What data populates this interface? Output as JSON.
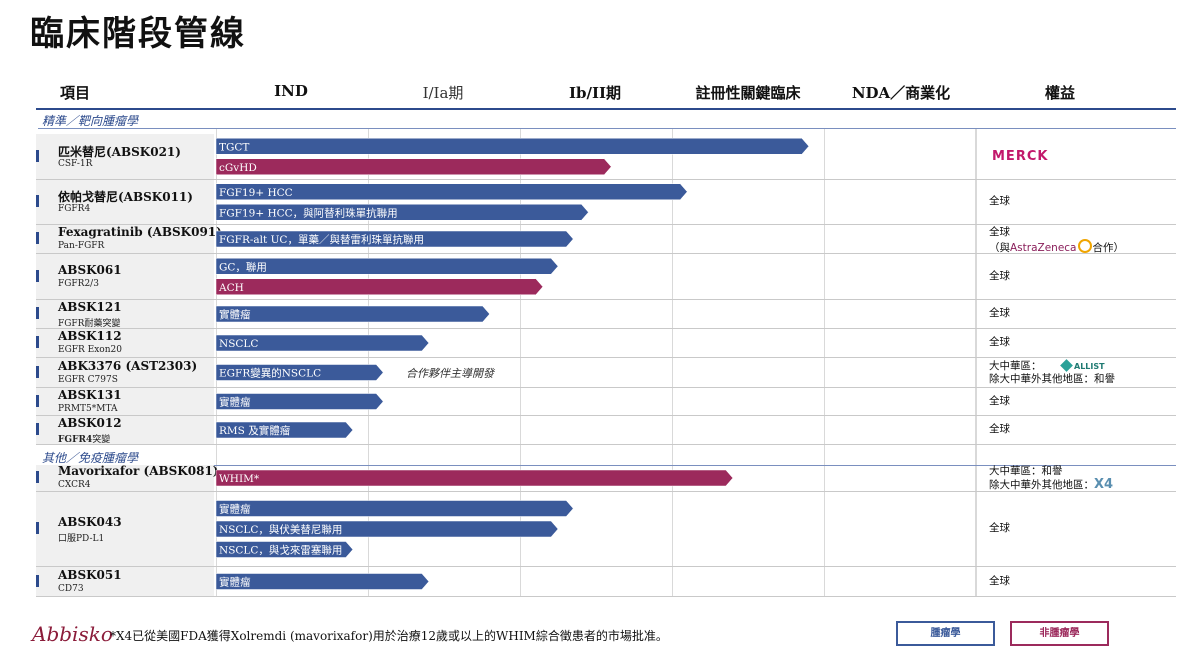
{
  "page_title": "臨床階段管線",
  "chart_data": {
    "type": "bar",
    "columns": [
      "項目",
      "IND",
      "I/Ia期",
      "Ib/II期",
      "註冊性關鍵臨床",
      "NDA／商業化",
      "權益"
    ],
    "stages": [
      "IND",
      "I/Ia期",
      "Ib/II期",
      "註冊性關鍵臨床",
      "NDA／商業化"
    ],
    "colors": {
      "oncology": "#3b5a9a",
      "non_oncology": "#9c2a5c",
      "accent": "#2c4a8c"
    },
    "sections": [
      {
        "label": "精準／靶向腫瘤學",
        "rows": [
          {
            "drug": "匹米替尼(ABSK021)",
            "target": "CSF-1R",
            "bars": [
              {
                "label": "TGCT",
                "progress": 3.9,
                "kind": "oncology"
              },
              {
                "label": "cGvHD",
                "progress": 2.6,
                "kind": "non_oncology"
              }
            ],
            "rights": [],
            "rights_logo": "merck"
          },
          {
            "drug": "依帕戈替尼(ABSK011)",
            "target": "FGFR4",
            "bars": [
              {
                "label": "FGF19+ HCC",
                "progress": 3.1,
                "kind": "oncology"
              },
              {
                "label": "FGF19+ HCC，與阿替利珠單抗聯用",
                "progress": 2.45,
                "kind": "oncology"
              }
            ],
            "rights": [
              "全球"
            ]
          },
          {
            "drug": "Fexagratinib (ABSK091)",
            "target": "Pan-FGFR",
            "bars": [
              {
                "label": "FGFR-alt UC，單藥／與替雷利珠單抗聯用",
                "progress": 2.35,
                "kind": "oncology"
              }
            ],
            "rights": [
              "全球",
              "（與",
              "合作）"
            ],
            "rights_partner": "AstraZeneca"
          },
          {
            "drug": "ABSK061",
            "target": "FGFR2/3",
            "bars": [
              {
                "label": "GC，聯用",
                "progress": 2.25,
                "kind": "oncology"
              },
              {
                "label": "ACH",
                "progress": 2.15,
                "kind": "non_oncology"
              }
            ],
            "rights": [
              "全球"
            ]
          },
          {
            "drug": "ABSK121",
            "target": "FGFR耐藥突變",
            "bars": [
              {
                "label": "實體瘤",
                "progress": 1.8,
                "kind": "oncology"
              }
            ],
            "rights": [
              "全球"
            ]
          },
          {
            "drug": "ABSK112",
            "target": "EGFR Exon20",
            "bars": [
              {
                "label": "NSCLC",
                "progress": 1.4,
                "kind": "oncology"
              }
            ],
            "rights": [
              "全球"
            ]
          },
          {
            "drug": "ABK3376 (AST2303)",
            "target": "EGFR C797S",
            "bars": [
              {
                "label": "EGFR變異的NSCLC",
                "progress": 1.1,
                "kind": "oncology"
              }
            ],
            "note": "合作夥伴主導開發",
            "rights": [
              "大中華區：",
              "除大中華外其他地區：和譽"
            ],
            "rights_partner": "ALLIST"
          },
          {
            "drug": "ABSK131",
            "target": "PRMT5*MTA",
            "bars": [
              {
                "label": "實體瘤",
                "progress": 1.1,
                "kind": "oncology"
              }
            ],
            "rights": [
              "全球"
            ]
          },
          {
            "drug": "ABSK012",
            "target_bold": "FGFR4",
            "target": "突變",
            "bars": [
              {
                "label": "RMS 及實體瘤",
                "progress": 0.9,
                "kind": "oncology"
              }
            ],
            "rights": [
              "全球"
            ]
          }
        ]
      },
      {
        "label": "其他／免疫腫瘤學",
        "rows": [
          {
            "drug": "Mavorixafor (ABSK081)",
            "target": "CXCR4",
            "bars": [
              {
                "label": "WHIM*",
                "progress": 3.4,
                "kind": "non_oncology"
              }
            ],
            "rights": [
              "大中華區：和譽",
              "除大中華外其他地區："
            ],
            "rights_partner": "X4"
          },
          {
            "drug": "ABSK043",
            "target": "口服PD-L1",
            "bars": [
              {
                "label": "實體瘤",
                "progress": 2.35,
                "kind": "oncology"
              },
              {
                "label": "NSCLC，與伏美替尼聯用",
                "progress": 2.25,
                "kind": "oncology"
              },
              {
                "label": "NSCLC，與戈來雷塞聯用",
                "progress": 0.9,
                "kind": "oncology"
              }
            ],
            "rights": [
              "全球"
            ]
          },
          {
            "drug": "ABSK051",
            "target": "CD73",
            "bars": [
              {
                "label": "實體瘤",
                "progress": 1.4,
                "kind": "oncology"
              }
            ],
            "rights": [
              "全球"
            ]
          }
        ]
      }
    ]
  },
  "logos": {
    "merck": "MERCK",
    "astrazeneca": "AstraZeneca",
    "allist": "ALLIST",
    "x4": "X4",
    "company": "Abbisko"
  },
  "footnote": "*X4已從美國FDA獲得Xolremdi (mavorixafor)用於治療12歲或以上的WHIM綜合徵患者的市場批准。",
  "legend": {
    "oncology": "腫瘤學",
    "non_oncology": "非腫瘤學"
  }
}
